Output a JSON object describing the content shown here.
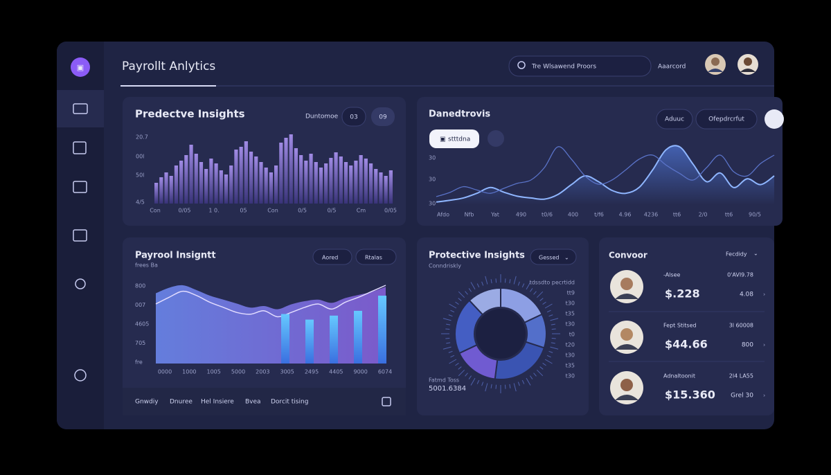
{
  "header": {
    "title": "Payrollt Anlytics",
    "search": "Tre Wlsawend Proors",
    "account": "Aaarcord"
  },
  "predictive": {
    "title": "Predectve Insights",
    "filter": "Duntomoe",
    "buttons": [
      "03",
      "09"
    ],
    "y_labels": [
      "20.7",
      "00l",
      "50l",
      "4/5"
    ],
    "x_labels": [
      "Con",
      "0/05",
      "1 0.",
      "05",
      "Con",
      "0/5",
      "0/5",
      "Cm",
      "0/05"
    ],
    "values": [
      30,
      38,
      45,
      40,
      55,
      62,
      70,
      85,
      72,
      60,
      50,
      65,
      58,
      48,
      42,
      55,
      78,
      82,
      90,
      75,
      68,
      60,
      52,
      45,
      55,
      88,
      95,
      100,
      80,
      70,
      62,
      72,
      60,
      52,
      58,
      66,
      74,
      68,
      60,
      55,
      62,
      70,
      65,
      58,
      50,
      45,
      40,
      48
    ]
  },
  "trends": {
    "title": "Danedtrovis",
    "buttons": [
      "Aduuc",
      "Ofepdrcrfut"
    ],
    "chip": "stttdna",
    "y_labels": [
      "30",
      "30",
      "30"
    ],
    "x_labels": [
      "Afdo",
      "Nfb",
      "Yat",
      "490",
      "t0/6",
      "400",
      "t/f6",
      "4.96",
      "4236",
      "tt6",
      "2/0",
      "tt6",
      "90/5"
    ],
    "series": [
      [
        5,
        8,
        12,
        20,
        30,
        22,
        15,
        12,
        10,
        18,
        35,
        50,
        40,
        25,
        20,
        30,
        60,
        95,
        100,
        70,
        40,
        55,
        30,
        45,
        35,
        50
      ],
      [
        10,
        15,
        22,
        18,
        14,
        20,
        26,
        30,
        45,
        70,
        55,
        35,
        25,
        30,
        42,
        55,
        60,
        48,
        38,
        30,
        45,
        60,
        40,
        35,
        50,
        60
      ]
    ]
  },
  "payroll": {
    "title": "Payrool Insigntt",
    "subtitle": "frees Ba",
    "buttons": [
      "Aored",
      "Rtalas"
    ],
    "y_labels": [
      "800",
      "007",
      "4605",
      "705",
      "fre"
    ],
    "x_labels": [
      "0000",
      "1000",
      "1005",
      "5000",
      "2003",
      "3005",
      "2495",
      "4405",
      "9000",
      "6074"
    ],
    "area": [
      88,
      95,
      98,
      92,
      85,
      80,
      75,
      70,
      72,
      68,
      74,
      78,
      80,
      76,
      82,
      86,
      90,
      96
    ],
    "line": [
      70,
      78,
      85,
      80,
      72,
      66,
      60,
      58,
      62,
      55,
      60,
      66,
      70,
      64,
      72,
      78,
      85,
      92
    ],
    "bars": [
      62,
      55,
      60,
      66,
      85
    ],
    "tabs": [
      "Gnwdiy",
      "Dnuree",
      "Hel Insiere",
      "Bvea",
      "Dorcit tising"
    ]
  },
  "protective": {
    "title": "Protective Insights",
    "dropdown": "Gessed",
    "subtitle": "Conndriskly",
    "segments": [
      18,
      12,
      22,
      16,
      20,
      12
    ],
    "ring_labels": [
      "tdssdto pecrtidd",
      "tt9",
      "t30",
      "t35",
      "t30",
      "t0",
      "t20",
      "t30",
      "t35",
      "t30"
    ],
    "footer_label": "Fatmd Toss",
    "footer_value": "5001.6384"
  },
  "conversions": {
    "title": "Convoor",
    "filter": "Fecdidy",
    "rows": [
      {
        "label": "-Alsee",
        "amount": "$.228",
        "meta": "0'AVI9.78",
        "change": "4.08"
      },
      {
        "label": "Fept Stitsed",
        "amount": "$44.66",
        "meta": "3l 60008",
        "change": "800"
      },
      {
        "label": "Adnaltoonit",
        "amount": "$15.360",
        "meta": "2l4 LA55",
        "change": "Grel 30"
      }
    ]
  }
}
